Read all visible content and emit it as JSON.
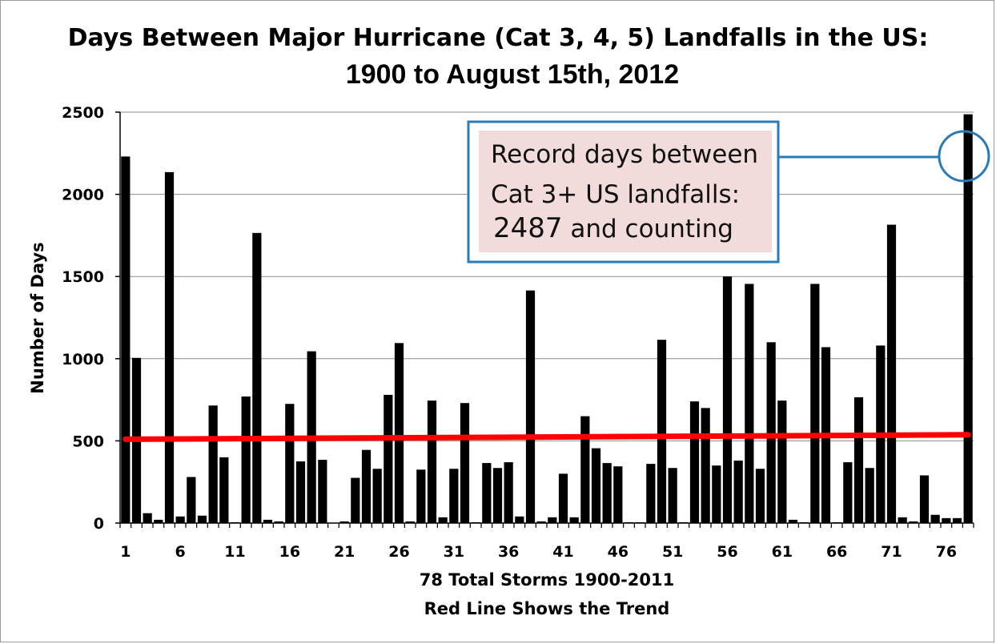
{
  "chart_data": {
    "type": "bar",
    "title_line1": "Days Between Major Hurricane (Cat 3, 4, 5) Landfalls in the US:",
    "title_line2": "1900 to August 15th, 2012",
    "ylabel": "Number of Days",
    "xlabel_line1": "78 Total Storms 1900-2011",
    "xlabel_line2": "Red Line Shows the Trend",
    "ylim": [
      0,
      2500
    ],
    "yticks": [
      0,
      500,
      1000,
      1500,
      2000,
      2500
    ],
    "xtick_labels": [
      "1",
      "6",
      "11",
      "16",
      "21",
      "26",
      "31",
      "36",
      "41",
      "46",
      "51",
      "56",
      "61",
      "66",
      "71",
      "76"
    ],
    "grid": true,
    "bar_color": "#000000",
    "trend_color": "#ff0000",
    "trend": {
      "start": 510,
      "end": 537
    },
    "values": [
      2230,
      1005,
      60,
      20,
      2135,
      40,
      280,
      45,
      715,
      400,
      5,
      770,
      1765,
      20,
      10,
      725,
      375,
      1045,
      385,
      0,
      10,
      275,
      445,
      330,
      780,
      1095,
      10,
      325,
      745,
      35,
      330,
      730,
      5,
      365,
      335,
      370,
      40,
      1415,
      10,
      35,
      300,
      35,
      650,
      455,
      365,
      345,
      5,
      5,
      360,
      1115,
      335,
      5,
      740,
      700,
      350,
      1500,
      380,
      1455,
      330,
      1100,
      745,
      20,
      5,
      1455,
      1070,
      5,
      370,
      765,
      335,
      1080,
      1815,
      35,
      10,
      290,
      50,
      30,
      30,
      2487
    ],
    "annotation": {
      "line1": "Record days between",
      "line2": "Cat 3+ US landfalls:",
      "number": "2487",
      "rest": " and counting",
      "box_border": "#2a7ab8",
      "box_fill": "#f2dcdb"
    }
  }
}
